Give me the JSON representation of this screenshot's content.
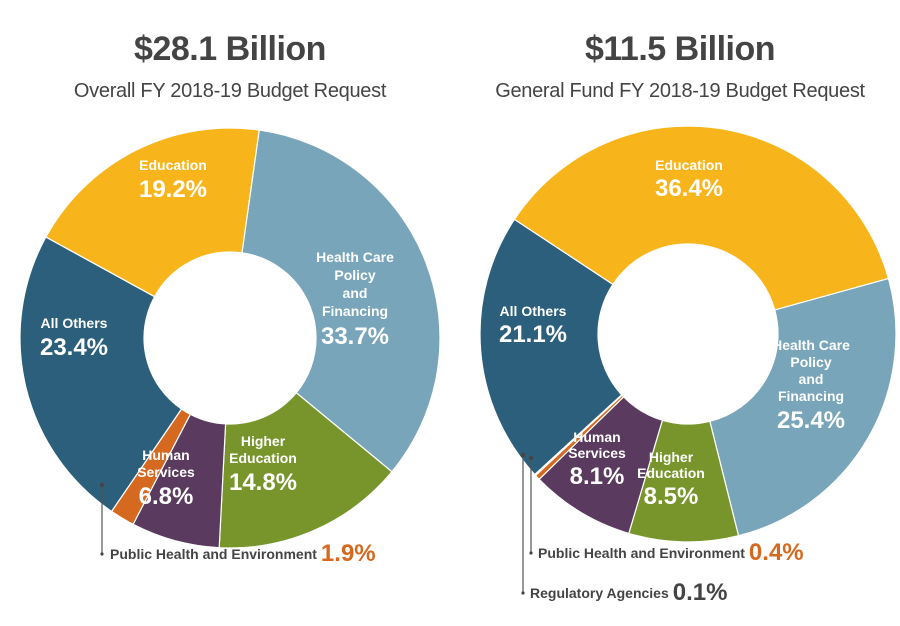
{
  "chart_data": [
    {
      "type": "pie",
      "variant": "donut",
      "title": "$28.1 Billion",
      "subtitle": "Overall FY 2018-19 Budget Request",
      "slices": [
        {
          "name": "Health Care Policy and Financing",
          "label_lines": [
            "Health Care",
            "Policy",
            "and",
            "Financing"
          ],
          "value": 33.7,
          "display": "33.7%",
          "color": "#78a5b9"
        },
        {
          "name": "Higher Education",
          "label_lines": [
            "Higher",
            "Education"
          ],
          "value": 14.8,
          "display": "14.8%",
          "color": "#77952a"
        },
        {
          "name": "Human Services",
          "label_lines": [
            "Human",
            "Services"
          ],
          "value": 6.8,
          "display": "6.8%",
          "color": "#5a3a5e"
        },
        {
          "name": "Public Health and Environment",
          "label_lines": [],
          "value": 1.9,
          "display": "1.9%",
          "color": "#d4691f",
          "callout": true
        },
        {
          "name": "All Others",
          "label_lines": [
            "All Others"
          ],
          "value": 23.4,
          "display": "23.4%",
          "color": "#2b5f7c"
        },
        {
          "name": "Education",
          "label_lines": [
            "Education"
          ],
          "value": 19.2,
          "display": "19.2%",
          "color": "#f8b51b"
        }
      ],
      "callouts": [
        {
          "label": "Public Health and Environment",
          "value": "1.9%",
          "value_color": "#d4691f"
        }
      ]
    },
    {
      "type": "pie",
      "variant": "donut",
      "title": "$11.5 Billion",
      "subtitle": "General Fund FY 2018-19 Budget Request",
      "slices": [
        {
          "name": "Health Care Policy and Financing",
          "label_lines": [
            "Health Care",
            "Policy",
            "and",
            "Financing"
          ],
          "value": 25.4,
          "display": "25.4%",
          "color": "#78a5b9"
        },
        {
          "name": "Higher Education",
          "label_lines": [
            "Higher",
            "Education"
          ],
          "value": 8.5,
          "display": "8.5%",
          "color": "#77952a"
        },
        {
          "name": "Human Services",
          "label_lines": [
            "Human",
            "Services"
          ],
          "value": 8.1,
          "display": "8.1%",
          "color": "#5a3a5e"
        },
        {
          "name": "Public Health and Environment",
          "label_lines": [],
          "value": 0.4,
          "display": "0.4%",
          "color": "#d4691f",
          "callout": true
        },
        {
          "name": "Regulatory Agencies",
          "label_lines": [],
          "value": 0.1,
          "display": "0.1%",
          "color": "#222222",
          "callout": true
        },
        {
          "name": "All Others",
          "label_lines": [
            "All Others"
          ],
          "value": 21.1,
          "display": "21.1%",
          "color": "#2b5f7c"
        },
        {
          "name": "Education",
          "label_lines": [
            "Education"
          ],
          "value": 36.4,
          "display": "36.4%",
          "color": "#f8b51b"
        }
      ],
      "callouts": [
        {
          "label": "Public Health and Environment",
          "value": "0.4%",
          "value_color": "#d4691f"
        },
        {
          "label": "Regulatory Agencies",
          "value": "0.1%",
          "value_color": "#444444"
        }
      ]
    }
  ]
}
